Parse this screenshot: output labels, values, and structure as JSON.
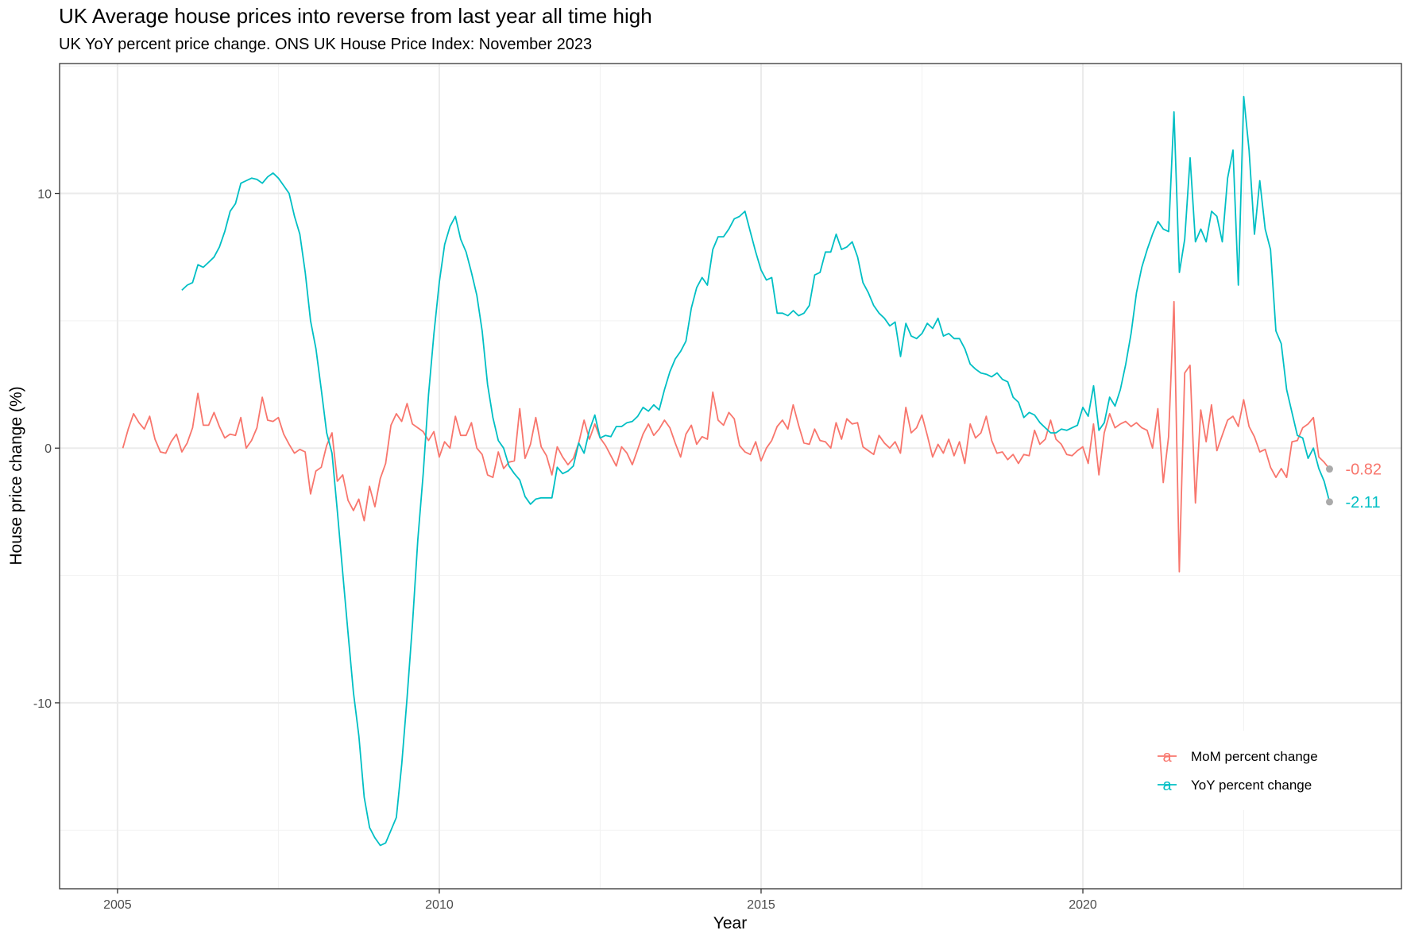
{
  "chart_data": {
    "type": "line",
    "title": "UK Average house prices into reverse from last year all time high",
    "subtitle": "UK YoY percent price change. ONS UK House Price Index: November 2023",
    "xlabel": "Year",
    "ylabel": "House price change (%)",
    "xlim": [
      2004.1,
      2024.95
    ],
    "ylim": [
      -17.3,
      15.1
    ],
    "x_ticks": [
      2005,
      2010,
      2015,
      2020
    ],
    "x_tick_labels": [
      "2005",
      "2010",
      "2015",
      "2020"
    ],
    "y_ticks": [
      -10,
      0,
      10
    ],
    "y_tick_labels": [
      "-10",
      "0",
      "10"
    ],
    "grid": true,
    "legend_position": "bottom-right inside",
    "legend_glyph": "a",
    "end_marker_color": "#aaaaaa",
    "series": [
      {
        "name": "MoM percent change",
        "color": "#F8766D",
        "end_label": "-0.82",
        "x_start": 2005.083,
        "x_step": 0.08333,
        "values": [
          0.0,
          0.75,
          1.35,
          1.0,
          0.75,
          1.25,
          0.35,
          -0.15,
          -0.2,
          0.25,
          0.55,
          -0.15,
          0.2,
          0.8,
          2.15,
          0.9,
          0.9,
          1.4,
          0.85,
          0.4,
          0.55,
          0.5,
          1.2,
          0.0,
          0.3,
          0.8,
          2.0,
          1.1,
          1.05,
          1.2,
          0.55,
          0.15,
          -0.2,
          -0.05,
          -0.15,
          -1.8,
          -0.9,
          -0.75,
          0.1,
          0.6,
          -1.3,
          -1.05,
          -2.05,
          -2.45,
          -2.0,
          -2.85,
          -1.5,
          -2.3,
          -1.2,
          -0.6,
          0.9,
          1.35,
          1.05,
          1.75,
          0.95,
          0.8,
          0.65,
          0.3,
          0.65,
          -0.35,
          0.25,
          0.0,
          1.25,
          0.5,
          0.5,
          1.0,
          0.0,
          -0.25,
          -1.05,
          -1.15,
          -0.15,
          -0.8,
          -0.55,
          -0.5,
          1.55,
          -0.4,
          0.15,
          1.2,
          0.05,
          -0.3,
          -1.05,
          0.05,
          -0.35,
          -0.65,
          -0.4,
          0.2,
          1.1,
          0.35,
          0.95,
          0.4,
          0.1,
          -0.3,
          -0.7,
          0.05,
          -0.2,
          -0.65,
          -0.05,
          0.55,
          0.95,
          0.5,
          0.75,
          1.1,
          0.8,
          0.2,
          -0.35,
          0.55,
          0.9,
          0.15,
          0.45,
          0.35,
          2.2,
          1.1,
          0.9,
          1.4,
          1.15,
          0.1,
          -0.15,
          -0.25,
          0.25,
          -0.5,
          0.0,
          0.3,
          0.85,
          1.1,
          0.75,
          1.7,
          0.9,
          0.2,
          0.15,
          0.75,
          0.3,
          0.25,
          0.0,
          1.0,
          0.35,
          1.15,
          0.95,
          1.0,
          0.05,
          -0.1,
          -0.25,
          0.5,
          0.2,
          0.0,
          0.25,
          -0.2,
          1.6,
          0.6,
          0.8,
          1.3,
          0.5,
          -0.35,
          0.15,
          -0.2,
          0.35,
          -0.3,
          0.25,
          -0.6,
          0.95,
          0.4,
          0.6,
          1.25,
          0.3,
          -0.2,
          -0.15,
          -0.45,
          -0.25,
          -0.6,
          -0.25,
          -0.3,
          0.7,
          0.15,
          0.35,
          1.1,
          0.35,
          0.15,
          -0.25,
          -0.3,
          -0.1,
          0.05,
          -0.6,
          0.95,
          -1.05,
          0.6,
          1.35,
          0.8,
          0.95,
          1.05,
          0.85,
          1.0,
          0.8,
          0.7,
          0.0,
          1.55,
          -1.35,
          0.45,
          5.75,
          -4.85,
          2.95,
          3.25,
          -2.15,
          1.5,
          0.25,
          1.7,
          -0.1,
          0.5,
          1.1,
          1.25,
          0.85,
          1.9,
          0.85,
          0.45,
          -0.15,
          -0.05,
          -0.75,
          -1.15,
          -0.8,
          -1.15,
          0.25,
          0.3,
          0.8,
          0.95,
          1.2,
          -0.35,
          -0.55,
          -0.82
        ]
      },
      {
        "name": "YoY percent change",
        "color": "#00BFC4",
        "end_label": "-2.11",
        "x_start": 2006.0,
        "x_step": 0.08333,
        "values": [
          6.2,
          6.4,
          6.5,
          7.2,
          7.1,
          7.3,
          7.5,
          7.9,
          8.5,
          9.3,
          9.6,
          10.4,
          10.5,
          10.6,
          10.55,
          10.4,
          10.65,
          10.8,
          10.6,
          10.3,
          10.0,
          9.1,
          8.4,
          6.9,
          5.0,
          3.9,
          2.3,
          0.6,
          -0.2,
          -2.5,
          -4.9,
          -7.3,
          -9.6,
          -11.3,
          -13.7,
          -14.9,
          -15.3,
          -15.6,
          -15.5,
          -15.0,
          -14.5,
          -12.4,
          -9.8,
          -6.9,
          -3.6,
          -1.0,
          2.1,
          4.5,
          6.5,
          8.0,
          8.7,
          9.1,
          8.2,
          7.7,
          6.9,
          6.0,
          4.6,
          2.5,
          1.2,
          0.3,
          0.0,
          -0.7,
          -1.0,
          -1.25,
          -1.9,
          -2.2,
          -2.0,
          -1.95,
          -1.95,
          -1.95,
          -0.75,
          -1.0,
          -0.9,
          -0.7,
          0.2,
          -0.2,
          0.7,
          1.3,
          0.4,
          0.5,
          0.45,
          0.85,
          0.85,
          1.0,
          1.05,
          1.25,
          1.6,
          1.45,
          1.7,
          1.5,
          2.3,
          3.0,
          3.5,
          3.8,
          4.2,
          5.5,
          6.3,
          6.7,
          6.4,
          7.8,
          8.3,
          8.3,
          8.6,
          9.0,
          9.1,
          9.3,
          8.5,
          7.7,
          7.0,
          6.6,
          6.7,
          5.3,
          5.3,
          5.2,
          5.4,
          5.2,
          5.3,
          5.6,
          6.8,
          6.9,
          7.7,
          7.7,
          8.4,
          7.8,
          7.9,
          8.1,
          7.5,
          6.5,
          6.1,
          5.6,
          5.3,
          5.1,
          4.8,
          4.95,
          3.6,
          4.9,
          4.4,
          4.3,
          4.5,
          4.9,
          4.7,
          5.1,
          4.4,
          4.5,
          4.3,
          4.3,
          3.9,
          3.3,
          3.1,
          2.95,
          2.9,
          2.8,
          2.95,
          2.7,
          2.6,
          2.0,
          1.8,
          1.2,
          1.4,
          1.3,
          1.0,
          0.8,
          0.6,
          0.6,
          0.75,
          0.7,
          0.8,
          0.9,
          1.6,
          1.25,
          2.45,
          0.7,
          1.0,
          2.0,
          1.65,
          2.3,
          3.3,
          4.5,
          6.1,
          7.1,
          7.8,
          8.4,
          8.9,
          8.6,
          8.5,
          13.2,
          6.9,
          8.2,
          11.4,
          8.1,
          8.6,
          8.1,
          9.3,
          9.1,
          8.1,
          10.6,
          11.7,
          6.4,
          13.8,
          11.7,
          8.4,
          10.5,
          8.6,
          7.8,
          4.6,
          4.1,
          2.3,
          1.4,
          0.5,
          0.4,
          -0.4,
          0.0,
          -0.8,
          -1.3,
          -2.11
        ]
      }
    ]
  }
}
